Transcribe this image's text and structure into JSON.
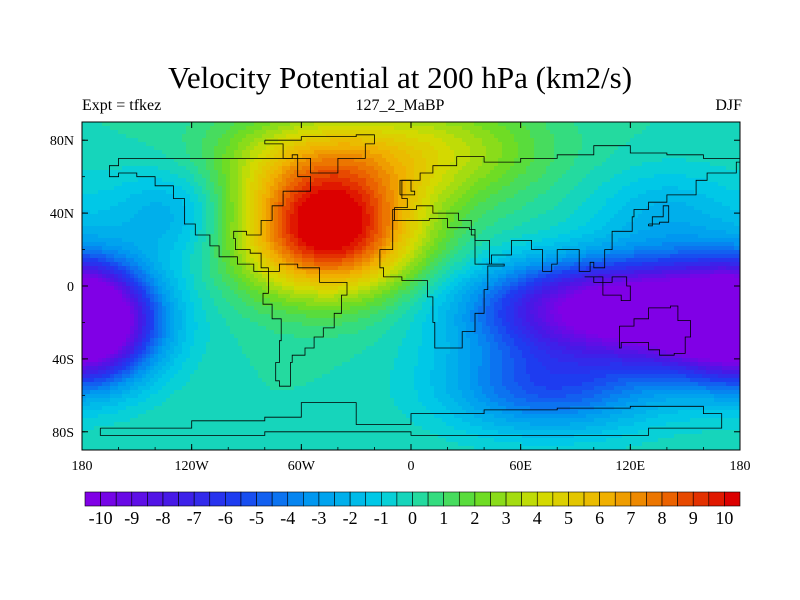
{
  "chart_data": {
    "type": "heatmap",
    "title": "Velocity Potential at 200 hPa (km2/s)",
    "left_label": "Expt = tfkez",
    "center_label": "127_2_MaBP",
    "right_label": "DJF",
    "x_ticks": [
      {
        "value": -180,
        "label": "180"
      },
      {
        "value": -120,
        "label": "120W"
      },
      {
        "value": -60,
        "label": "60W"
      },
      {
        "value": 0,
        "label": "0"
      },
      {
        "value": 60,
        "label": "60E"
      },
      {
        "value": 120,
        "label": "120E"
      },
      {
        "value": 180,
        "label": "180"
      }
    ],
    "y_ticks": [
      {
        "value": 80,
        "label": "80N"
      },
      {
        "value": 40,
        "label": "40N"
      },
      {
        "value": 0,
        "label": "0"
      },
      {
        "value": -40,
        "label": "40S"
      },
      {
        "value": -80,
        "label": "80S"
      }
    ],
    "xlim": [
      -180,
      180
    ],
    "ylim": [
      -90,
      90
    ],
    "colorbar": {
      "labels": [
        "-10",
        "-9",
        "-8",
        "-7",
        "-6",
        "-5",
        "-4",
        "-3",
        "-2",
        "-1",
        "0",
        "1",
        "2",
        "3",
        "4",
        "5",
        "6",
        "7",
        "8",
        "9",
        "10"
      ],
      "min": -10.5,
      "max": 10.5,
      "levels": 42
    },
    "field_centers": [
      {
        "lon": -45,
        "lat": 30,
        "value": 10.8,
        "sigma_lon": 34,
        "sigma_lat": 24
      },
      {
        "lon": -50,
        "lat": 70,
        "value": 4.0,
        "sigma_lon": 40,
        "sigma_lat": 20
      },
      {
        "lon": 20,
        "lat": 75,
        "value": 3.0,
        "sigma_lon": 40,
        "sigma_lat": 20
      },
      {
        "lon": 105,
        "lat": -12,
        "value": -10.5,
        "sigma_lon": 48,
        "sigma_lat": 18
      },
      {
        "lon": 165,
        "lat": -20,
        "value": -8.0,
        "sigma_lon": 35,
        "sigma_lat": 22
      },
      {
        "lon": -175,
        "lat": -20,
        "value": -8.0,
        "sigma_lon": 22,
        "sigma_lat": 22
      },
      {
        "lon": 75,
        "lat": -55,
        "value": -5.0,
        "sigma_lon": 40,
        "sigma_lat": 18
      },
      {
        "lon": -130,
        "lat": 40,
        "value": -2.5,
        "sigma_lon": 25,
        "sigma_lat": 18
      },
      {
        "lon": 140,
        "lat": 40,
        "value": -2.0,
        "sigma_lon": 30,
        "sigma_lat": 18
      }
    ]
  }
}
